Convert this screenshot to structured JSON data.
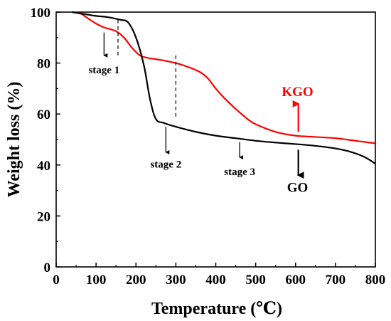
{
  "chart_data": {
    "type": "line",
    "xlabel": "Temperature (℃)",
    "ylabel": "Weight loss (%)",
    "xlim": [
      0,
      800
    ],
    "ylim": [
      0,
      100
    ],
    "x_ticks": [
      "0",
      "100",
      "200",
      "300",
      "400",
      "500",
      "600",
      "700",
      "800"
    ],
    "y_ticks": [
      "0",
      "20",
      "40",
      "60",
      "80",
      "100"
    ],
    "grid": false,
    "series": [
      {
        "name": "KGO",
        "color": "#ff0000",
        "x": [
          40,
          60,
          80,
          100,
          120,
          150,
          170,
          190,
          210,
          230,
          250,
          270,
          300,
          330,
          360,
          380,
          400,
          420,
          450,
          480,
          500,
          550,
          600,
          650,
          700,
          750,
          800
        ],
        "y": [
          100,
          99.5,
          97.5,
          95.5,
          94,
          92.5,
          90,
          86,
          83,
          82,
          81.5,
          81,
          80,
          78.5,
          76.5,
          74,
          70,
          66.5,
          62,
          58,
          56,
          53,
          51.5,
          51,
          50.5,
          49.5,
          48.5
        ]
      },
      {
        "name": "GO",
        "color": "#000000",
        "x": [
          40,
          60,
          80,
          100,
          130,
          160,
          180,
          200,
          220,
          235,
          250,
          270,
          300,
          350,
          400,
          450,
          500,
          550,
          600,
          650,
          700,
          730,
          760,
          780,
          800
        ],
        "y": [
          100,
          99.5,
          99,
          98.5,
          98,
          97,
          96,
          90,
          79,
          66,
          58,
          56.5,
          55,
          53,
          51.5,
          50.5,
          49.5,
          48.8,
          48.2,
          47.5,
          46.5,
          45.5,
          44,
          42.5,
          40.5
        ]
      }
    ],
    "annotations": [
      {
        "text": "stage 1",
        "x": 120,
        "y": 76,
        "arrow": {
          "x": 120,
          "y_from": 92,
          "y_to": 83
        }
      },
      {
        "text": "stage 2",
        "x": 275,
        "y": 39,
        "arrow": {
          "x": 275,
          "y_from": 55,
          "y_to": 45
        }
      },
      {
        "text": "stage 3",
        "x": 460,
        "y": 36,
        "arrow": {
          "x": 460,
          "y_from": 49,
          "y_to": 43
        }
      }
    ],
    "separators": [
      {
        "x": 155,
        "y_from": 97,
        "y_to": 83
      },
      {
        "x": 300,
        "y_from": 83,
        "y_to": 58
      }
    ],
    "series_labels": [
      {
        "text": "KGO",
        "color": "#ff0000",
        "x": 605,
        "y": 67,
        "arrow": {
          "x": 607,
          "y_from": 53,
          "y_to": 64
        }
      },
      {
        "text": "GO",
        "color": "#000000",
        "x": 605,
        "y": 29.5,
        "arrow": {
          "x": 607,
          "y_from": 46,
          "y_to": 36
        }
      }
    ]
  }
}
